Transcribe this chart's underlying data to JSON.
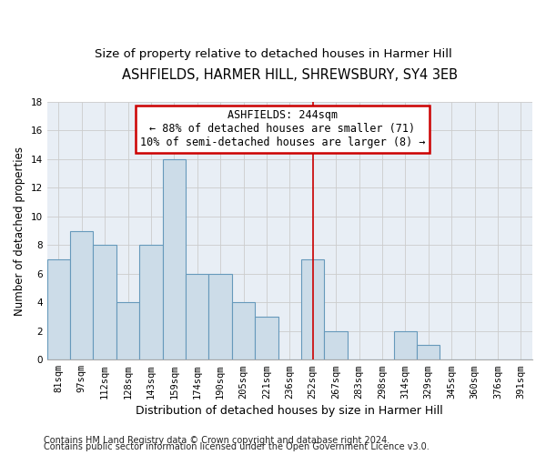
{
  "title": "ASHFIELDS, HARMER HILL, SHREWSBURY, SY4 3EB",
  "subtitle": "Size of property relative to detached houses in Harmer Hill",
  "xlabel": "Distribution of detached houses by size in Harmer Hill",
  "ylabel": "Number of detached properties",
  "categories": [
    "81sqm",
    "97sqm",
    "112sqm",
    "128sqm",
    "143sqm",
    "159sqm",
    "174sqm",
    "190sqm",
    "205sqm",
    "221sqm",
    "236sqm",
    "252sqm",
    "267sqm",
    "283sqm",
    "298sqm",
    "314sqm",
    "329sqm",
    "345sqm",
    "360sqm",
    "376sqm",
    "391sqm"
  ],
  "values": [
    7,
    9,
    8,
    4,
    8,
    14,
    6,
    6,
    4,
    3,
    0,
    7,
    2,
    0,
    0,
    2,
    1,
    0,
    0,
    0,
    0
  ],
  "bar_color": "#ccdce8",
  "bar_edge_color": "#6699bb",
  "annotation_line1": "ASHFIELDS: 244sqm",
  "annotation_line2": "← 88% of detached houses are smaller (71)",
  "annotation_line3": "10% of semi-detached houses are larger (8) →",
  "annotation_box_color": "#ffffff",
  "annotation_box_edge_color": "#cc0000",
  "vline_x": 11,
  "ylim": [
    0,
    18
  ],
  "yticks": [
    0,
    2,
    4,
    6,
    8,
    10,
    12,
    14,
    16,
    18
  ],
  "grid_color": "#cccccc",
  "background_color": "#e8eef5",
  "footer1": "Contains HM Land Registry data © Crown copyright and database right 2024.",
  "footer2": "Contains public sector information licensed under the Open Government Licence v3.0.",
  "title_fontsize": 10.5,
  "subtitle_fontsize": 9.5,
  "xlabel_fontsize": 9,
  "ylabel_fontsize": 8.5,
  "tick_fontsize": 7.5,
  "footer_fontsize": 7
}
